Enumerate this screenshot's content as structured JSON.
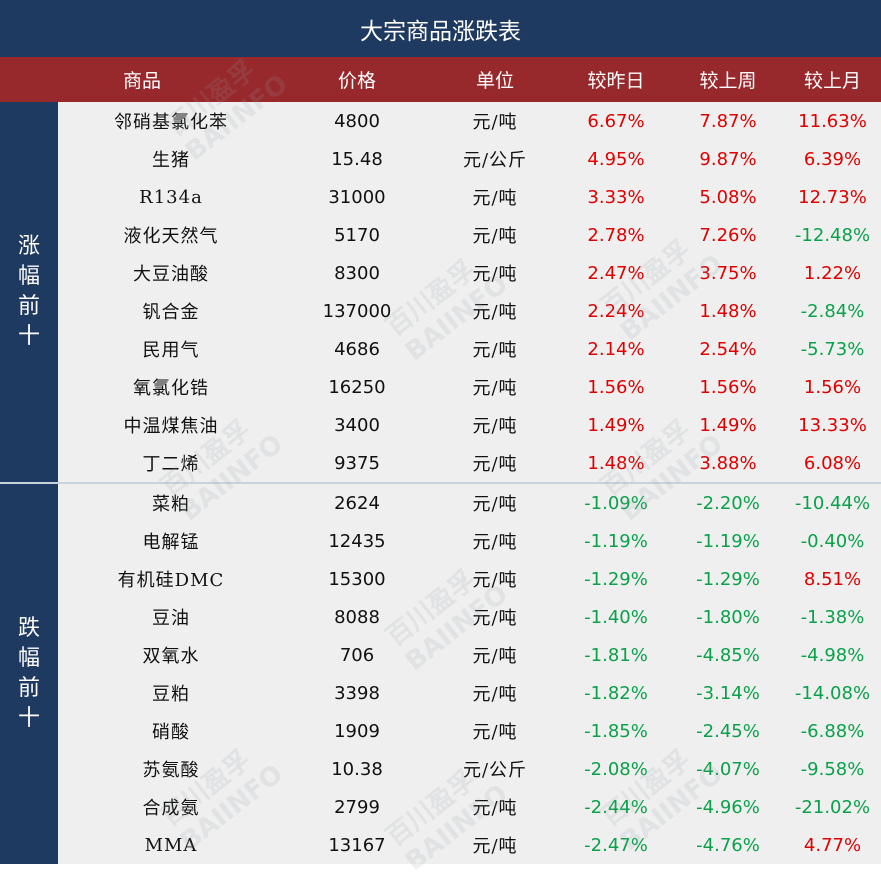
{
  "title": "大宗商品涨跌表",
  "headers": {
    "name": "商品",
    "price": "价格",
    "unit": "单位",
    "day": "较昨日",
    "week": "较上周",
    "month": "较上月"
  },
  "watermark": {
    "cn": "百川盈孚",
    "en": "BAIINFO"
  },
  "colors": {
    "title_bg": "#1f3a60",
    "header_bg": "#97282b",
    "row_bg": "#efefef",
    "up": "#e00000",
    "down": "#0aa14a"
  },
  "gainers": {
    "label": [
      "涨",
      "幅",
      "前",
      "十"
    ],
    "rows": [
      {
        "name": "邻硝基氯化苯",
        "price": "4800",
        "unit": "元/吨",
        "day": "6.67%",
        "week": "7.87%",
        "month": "11.63%"
      },
      {
        "name": "生猪",
        "price": "15.48",
        "unit": "元/公斤",
        "day": "4.95%",
        "week": "9.87%",
        "month": "6.39%"
      },
      {
        "name": "R134a",
        "price": "31000",
        "unit": "元/吨",
        "day": "3.33%",
        "week": "5.08%",
        "month": "12.73%"
      },
      {
        "name": "液化天然气",
        "price": "5170",
        "unit": "元/吨",
        "day": "2.78%",
        "week": "7.26%",
        "month": "-12.48%"
      },
      {
        "name": "大豆油酸",
        "price": "8300",
        "unit": "元/吨",
        "day": "2.47%",
        "week": "3.75%",
        "month": "1.22%"
      },
      {
        "name": "钒合金",
        "price": "137000",
        "unit": "元/吨",
        "day": "2.24%",
        "week": "1.48%",
        "month": "-2.84%"
      },
      {
        "name": "民用气",
        "price": "4686",
        "unit": "元/吨",
        "day": "2.14%",
        "week": "2.54%",
        "month": "-5.73%"
      },
      {
        "name": "氧氯化锆",
        "price": "16250",
        "unit": "元/吨",
        "day": "1.56%",
        "week": "1.56%",
        "month": "1.56%"
      },
      {
        "name": "中温煤焦油",
        "price": "3400",
        "unit": "元/吨",
        "day": "1.49%",
        "week": "1.49%",
        "month": "13.33%"
      },
      {
        "name": "丁二烯",
        "price": "9375",
        "unit": "元/吨",
        "day": "1.48%",
        "week": "3.88%",
        "month": "6.08%"
      }
    ]
  },
  "losers": {
    "label": [
      "跌",
      "幅",
      "前",
      "十"
    ],
    "rows": [
      {
        "name": "菜粕",
        "price": "2624",
        "unit": "元/吨",
        "day": "-1.09%",
        "week": "-2.20%",
        "month": "-10.44%"
      },
      {
        "name": "电解锰",
        "price": "12435",
        "unit": "元/吨",
        "day": "-1.19%",
        "week": "-1.19%",
        "month": "-0.40%"
      },
      {
        "name": "有机硅DMC",
        "price": "15300",
        "unit": "元/吨",
        "day": "-1.29%",
        "week": "-1.29%",
        "month": "8.51%"
      },
      {
        "name": "豆油",
        "price": "8088",
        "unit": "元/吨",
        "day": "-1.40%",
        "week": "-1.80%",
        "month": "-1.38%"
      },
      {
        "name": "双氧水",
        "price": "706",
        "unit": "元/吨",
        "day": "-1.81%",
        "week": "-4.85%",
        "month": "-4.98%"
      },
      {
        "name": "豆粕",
        "price": "3398",
        "unit": "元/吨",
        "day": "-1.82%",
        "week": "-3.14%",
        "month": "-14.08%"
      },
      {
        "name": "硝酸",
        "price": "1909",
        "unit": "元/吨",
        "day": "-1.85%",
        "week": "-2.45%",
        "month": "-6.88%"
      },
      {
        "name": "苏氨酸",
        "price": "10.38",
        "unit": "元/公斤",
        "day": "-2.08%",
        "week": "-4.07%",
        "month": "-9.58%"
      },
      {
        "name": "合成氨",
        "price": "2799",
        "unit": "元/吨",
        "day": "-2.44%",
        "week": "-4.96%",
        "month": "-21.02%"
      },
      {
        "name": "MMA",
        "price": "13167",
        "unit": "元/吨",
        "day": "-2.47%",
        "week": "-4.76%",
        "month": "4.77%"
      }
    ]
  }
}
